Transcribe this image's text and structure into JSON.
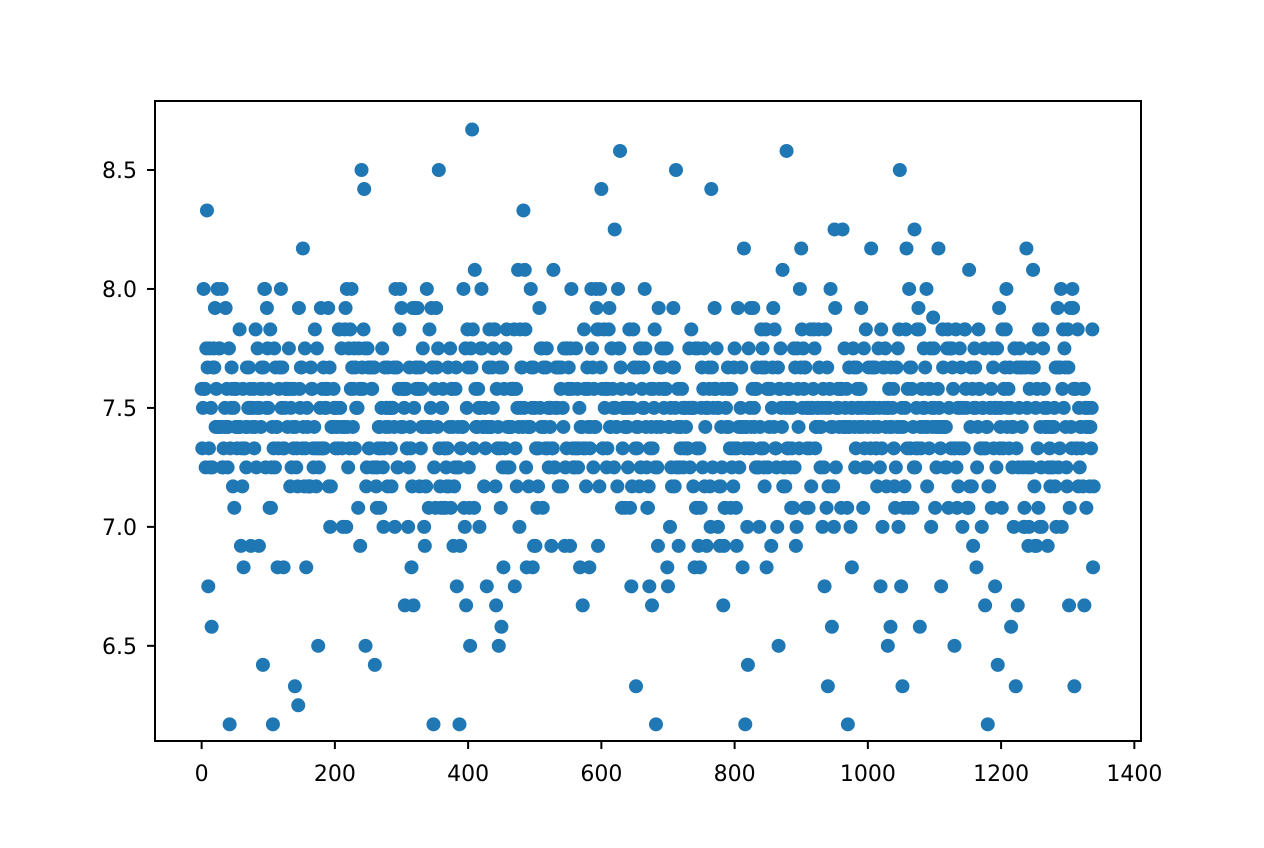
{
  "chart_data": {
    "type": "scatter",
    "title": "",
    "xlabel": "",
    "ylabel": "",
    "xlim": [
      -70,
      1410
    ],
    "ylim": [
      6.1,
      8.79
    ],
    "xticks": [
      0,
      200,
      400,
      600,
      800,
      1000,
      1200,
      1400
    ],
    "xtick_labels": [
      "0",
      "200",
      "400",
      "600",
      "800",
      "1000",
      "1200",
      "1400"
    ],
    "yticks": [
      6.5,
      7.0,
      7.5,
      8.0,
      8.5
    ],
    "ytick_labels": [
      "6.5",
      "7.0",
      "7.5",
      "8.0",
      "8.5"
    ],
    "grid": false,
    "marker_color": "#1f77b4",
    "n_points": 1340,
    "series": [
      {
        "x_start": 0,
        "x_step": 1,
        "y_range": [
          6.17,
          8.67
        ],
        "points": [
          [
            8,
            8.33
          ],
          [
            12,
            7.75
          ],
          [
            20,
            7.92
          ],
          [
            24,
            8.0
          ],
          [
            30,
            8.0
          ],
          [
            10,
            6.75
          ],
          [
            15,
            6.58
          ],
          [
            42,
            6.17
          ],
          [
            95,
            8.0
          ],
          [
            98,
            7.92
          ],
          [
            92,
            6.42
          ],
          [
            107,
            6.17
          ],
          [
            140,
            6.33
          ],
          [
            145,
            6.25
          ],
          [
            152,
            8.17
          ],
          [
            175,
            6.5
          ],
          [
            190,
            7.92
          ],
          [
            218,
            8.0
          ],
          [
            240,
            8.5
          ],
          [
            244,
            8.42
          ],
          [
            246,
            6.5
          ],
          [
            260,
            6.42
          ],
          [
            298,
            8.0
          ],
          [
            305,
            6.67
          ],
          [
            318,
            6.67
          ],
          [
            335,
            6.92
          ],
          [
            348,
            6.17
          ],
          [
            352,
            7.92
          ],
          [
            356,
            8.5
          ],
          [
            383,
            6.75
          ],
          [
            387,
            6.17
          ],
          [
            393,
            8.0
          ],
          [
            397,
            6.67
          ],
          [
            403,
            6.5
          ],
          [
            406,
            8.67
          ],
          [
            410,
            8.08
          ],
          [
            420,
            8.0
          ],
          [
            428,
            6.75
          ],
          [
            442,
            6.67
          ],
          [
            446,
            6.5
          ],
          [
            450,
            6.58
          ],
          [
            470,
            6.75
          ],
          [
            475,
            8.08
          ],
          [
            483,
            8.33
          ],
          [
            485,
            8.08
          ],
          [
            494,
            8.0
          ],
          [
            528,
            8.08
          ],
          [
            545,
            6.92
          ],
          [
            568,
            6.83
          ],
          [
            572,
            6.67
          ],
          [
            598,
            8.0
          ],
          [
            600,
            8.42
          ],
          [
            612,
            7.92
          ],
          [
            620,
            8.25
          ],
          [
            625,
            8.0
          ],
          [
            628,
            8.58
          ],
          [
            645,
            6.75
          ],
          [
            652,
            6.33
          ],
          [
            665,
            8.0
          ],
          [
            672,
            6.75
          ],
          [
            676,
            6.67
          ],
          [
            682,
            6.17
          ],
          [
            708,
            7.92
          ],
          [
            712,
            8.5
          ],
          [
            740,
            6.83
          ],
          [
            748,
            6.83
          ],
          [
            765,
            8.42
          ],
          [
            770,
            7.92
          ],
          [
            805,
            7.92
          ],
          [
            812,
            6.83
          ],
          [
            814,
            8.17
          ],
          [
            816,
            6.17
          ],
          [
            820,
            6.42
          ],
          [
            828,
            7.92
          ],
          [
            848,
            6.83
          ],
          [
            858,
            7.92
          ],
          [
            866,
            6.5
          ],
          [
            872,
            8.08
          ],
          [
            878,
            8.58
          ],
          [
            900,
            8.17
          ],
          [
            935,
            6.75
          ],
          [
            940,
            6.33
          ],
          [
            944,
            8.0
          ],
          [
            946,
            6.58
          ],
          [
            950,
            8.25
          ],
          [
            962,
            8.25
          ],
          [
            970,
            6.17
          ],
          [
            990,
            7.92
          ],
          [
            1005,
            8.17
          ],
          [
            1030,
            6.5
          ],
          [
            1034,
            6.58
          ],
          [
            1048,
            8.5
          ],
          [
            1052,
            6.33
          ],
          [
            1058,
            8.17
          ],
          [
            1062,
            8.0
          ],
          [
            1070,
            8.25
          ],
          [
            1078,
            6.58
          ],
          [
            1088,
            8.0
          ],
          [
            1098,
            7.88
          ],
          [
            1106,
            8.17
          ],
          [
            1110,
            6.75
          ],
          [
            1130,
            6.5
          ],
          [
            1152,
            8.08
          ],
          [
            1176,
            6.67
          ],
          [
            1180,
            6.17
          ],
          [
            1195,
            6.42
          ],
          [
            1208,
            8.0
          ],
          [
            1215,
            6.58
          ],
          [
            1222,
            6.33
          ],
          [
            1225,
            6.67
          ],
          [
            1238,
            8.17
          ],
          [
            1248,
            8.08
          ],
          [
            1290,
            8.0
          ],
          [
            1302,
            6.67
          ],
          [
            1310,
            6.33
          ],
          [
            1325,
            6.67
          ],
          [
            1338,
            6.83
          ],
          [
            1340,
            7.0
          ]
        ]
      }
    ]
  }
}
